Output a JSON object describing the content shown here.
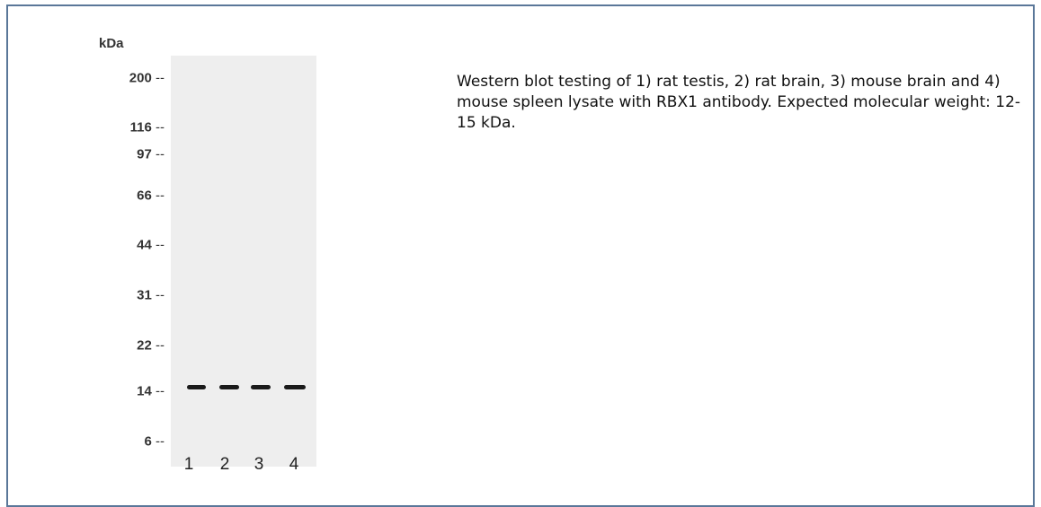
{
  "blot": {
    "unit": "kDa",
    "markers": [
      "200",
      "116",
      "97",
      "66",
      "44",
      "31",
      "22",
      "14",
      "6"
    ],
    "lanes": [
      "1",
      "2",
      "3",
      "4"
    ]
  },
  "caption": "Western blot testing of 1) rat testis, 2) rat brain, 3) mouse brain and 4) mouse spleen lysate with RBX1 antibody. Expected molecular weight: 12-15 kDa."
}
